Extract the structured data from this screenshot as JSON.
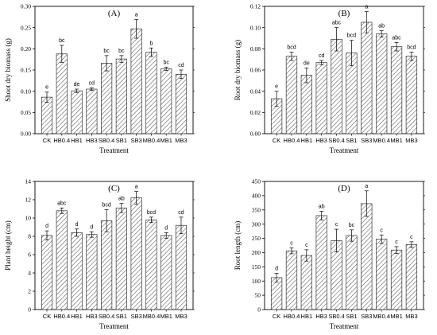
{
  "figure": {
    "hatch_color": "#555555",
    "bar_fill": "#ffffff",
    "axis_color": "#000000"
  },
  "chart_data": [
    {
      "type": "bar",
      "panel": "(A)",
      "categories": [
        "CK",
        "HB0.4",
        "HB1",
        "HB3",
        "SB0.4",
        "SB1",
        "SB3",
        "MB0.4",
        "MB1",
        "MB3"
      ],
      "values": [
        0.086,
        0.188,
        0.101,
        0.105,
        0.166,
        0.176,
        0.247,
        0.192,
        0.153,
        0.14
      ],
      "errors": [
        0.012,
        0.02,
        0.004,
        0.003,
        0.018,
        0.008,
        0.022,
        0.01,
        0.004,
        0.01
      ],
      "letters": [
        "e",
        "bc",
        "de",
        "cd",
        "bc",
        "bc",
        "a",
        "b",
        "bc",
        "cd"
      ],
      "xlabel": "Treatment",
      "ylabel": "Shoot dry biomass (g)",
      "ylim": [
        0,
        0.3
      ],
      "yticks": [
        "0.00",
        "0.05",
        "0.10",
        "0.15",
        "0.20",
        "0.25",
        "0.30"
      ],
      "ytick_values": [
        0,
        0.05,
        0.1,
        0.15,
        0.2,
        0.25,
        0.3
      ]
    },
    {
      "type": "bar",
      "panel": "(B)",
      "categories": [
        "CK",
        "HB0.4",
        "HB1",
        "HB3",
        "SB0.4",
        "SB1",
        "SB3",
        "MB0.4",
        "MB1",
        "MB3"
      ],
      "values": [
        0.033,
        0.073,
        0.055,
        0.067,
        0.089,
        0.076,
        0.105,
        0.094,
        0.082,
        0.073
      ],
      "errors": [
        0.007,
        0.004,
        0.007,
        0.002,
        0.011,
        0.012,
        0.01,
        0.003,
        0.004,
        0.004
      ],
      "letters": [
        "e",
        "bcd",
        "de",
        "cd",
        "abc",
        "bcd",
        "a",
        "ab",
        "abc",
        "bcd"
      ],
      "xlabel": "Treatment",
      "ylabel": "Root dry biomass (g)",
      "ylim": [
        0,
        0.12
      ],
      "yticks": [
        "0.00",
        "0.02",
        "0.04",
        "0.06",
        "0.08",
        "0.10",
        "0.12"
      ],
      "ytick_values": [
        0,
        0.02,
        0.04,
        0.06,
        0.08,
        0.1,
        0.12
      ]
    },
    {
      "type": "bar",
      "panel": "(C)",
      "categories": [
        "CK",
        "HB0.4",
        "HB1",
        "HB3",
        "SB0.4",
        "SB1",
        "SB3",
        "MB0.4",
        "MB1",
        "MB3"
      ],
      "values": [
        8.1,
        10.8,
        8.4,
        8.2,
        9.7,
        11.1,
        12.2,
        9.8,
        8.1,
        9.2
      ],
      "errors": [
        0.5,
        0.3,
        0.4,
        0.3,
        1.2,
        0.5,
        0.7,
        0.3,
        0.3,
        0.9
      ],
      "letters": [
        "d",
        "abc",
        "d",
        "d",
        "bcd",
        "ab",
        "a",
        "bcd",
        "d",
        "cd"
      ],
      "xlabel": "Treatment",
      "ylabel": "Plant height  (cm)",
      "ylim": [
        0,
        14
      ],
      "yticks": [
        "0",
        "2",
        "4",
        "6",
        "8",
        "10",
        "12",
        "14"
      ],
      "ytick_values": [
        0,
        2,
        4,
        6,
        8,
        10,
        12,
        14
      ]
    },
    {
      "type": "bar",
      "panel": "(D)",
      "categories": [
        "CK",
        "HB0.4",
        "HB1",
        "HB3",
        "SB0.4",
        "SB1",
        "SB3",
        "MB0.4",
        "MB1",
        "MB3"
      ],
      "values": [
        112,
        206,
        190,
        330,
        242,
        260,
        372,
        247,
        209,
        228
      ],
      "errors": [
        15,
        10,
        20,
        15,
        40,
        20,
        45,
        15,
        12,
        10
      ],
      "letters": [
        "d",
        "c",
        "c",
        "ab",
        "c",
        "bc",
        "a",
        "c",
        "c",
        "c"
      ],
      "xlabel": "Treatment",
      "ylabel": "Root length (cm)",
      "ylim": [
        0,
        450
      ],
      "yticks": [
        "0",
        "50",
        "100",
        "150",
        "200",
        "250",
        "300",
        "350",
        "400",
        "450"
      ],
      "ytick_values": [
        0,
        50,
        100,
        150,
        200,
        250,
        300,
        350,
        400,
        450
      ]
    }
  ]
}
